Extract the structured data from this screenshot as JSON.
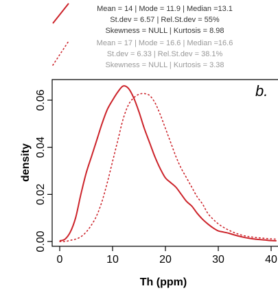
{
  "colors": {
    "primary": "#cc2229",
    "secondary": "#cc2229",
    "secondary_text": "#999999",
    "text": "#333333"
  },
  "legend": {
    "primary_lines": [
      "Mean = 14 | Mode = 11.9 | Median =13.1",
      "St.dev = 6.57 | Rel.St.dev = 55%",
      "Skewness = NULL | Kurtosis = 8.98"
    ],
    "secondary_lines": [
      "Mean = 17 | Mode = 16.6 | Median =16.6",
      "St.dev = 6.33 | Rel.St.dev = 38.1%",
      "Skewness = NULL | Kurtosis = 3.38"
    ]
  },
  "chart_data": {
    "type": "line",
    "panel_label": "b.",
    "xlabel": "Th (ppm)",
    "ylabel": "density",
    "xlim": [
      -2,
      41
    ],
    "ylim": [
      -0.002,
      0.072
    ],
    "xticks": [
      0,
      10,
      20,
      30,
      40
    ],
    "yticks": [
      0.0,
      0.02,
      0.04,
      0.06
    ],
    "ytick_labels": [
      "0.00",
      "0.02",
      "0.04",
      "0.06"
    ],
    "series": [
      {
        "style": "solid",
        "x": [
          0,
          1,
          2,
          3,
          4,
          5,
          6,
          7,
          8,
          9,
          10,
          11,
          12,
          13,
          14,
          15,
          16,
          17,
          18,
          19,
          20,
          21,
          22,
          23,
          24,
          25,
          26,
          27,
          28,
          29,
          30,
          31,
          32,
          33,
          34,
          35,
          36,
          37,
          38,
          39,
          40,
          41
        ],
        "values": [
          0.0003,
          0.001,
          0.004,
          0.01,
          0.02,
          0.029,
          0.036,
          0.043,
          0.05,
          0.056,
          0.06,
          0.0635,
          0.066,
          0.065,
          0.061,
          0.055,
          0.048,
          0.042,
          0.036,
          0.031,
          0.027,
          0.025,
          0.023,
          0.02,
          0.017,
          0.015,
          0.012,
          0.0095,
          0.0075,
          0.0058,
          0.0045,
          0.004,
          0.0035,
          0.0028,
          0.0022,
          0.0017,
          0.0013,
          0.001,
          0.0008,
          0.0006,
          0.0004,
          0.0003
        ]
      },
      {
        "style": "dotted",
        "x": [
          0,
          1,
          2,
          3,
          4,
          5,
          6,
          7,
          8,
          9,
          10,
          11,
          12,
          13,
          14,
          15,
          16,
          17,
          18,
          19,
          20,
          21,
          22,
          23,
          24,
          25,
          26,
          27,
          28,
          29,
          30,
          31,
          32,
          33,
          34,
          35,
          36,
          37,
          38,
          39,
          40,
          41
        ],
        "values": [
          0.0,
          0.0,
          0.0005,
          0.001,
          0.002,
          0.004,
          0.007,
          0.011,
          0.017,
          0.025,
          0.034,
          0.043,
          0.052,
          0.058,
          0.061,
          0.0625,
          0.0628,
          0.062,
          0.059,
          0.054,
          0.048,
          0.042,
          0.036,
          0.031,
          0.027,
          0.023,
          0.019,
          0.016,
          0.012,
          0.0095,
          0.0075,
          0.006,
          0.0048,
          0.0038,
          0.003,
          0.0024,
          0.002,
          0.0017,
          0.0015,
          0.0013,
          0.0011,
          0.001
        ]
      }
    ]
  }
}
